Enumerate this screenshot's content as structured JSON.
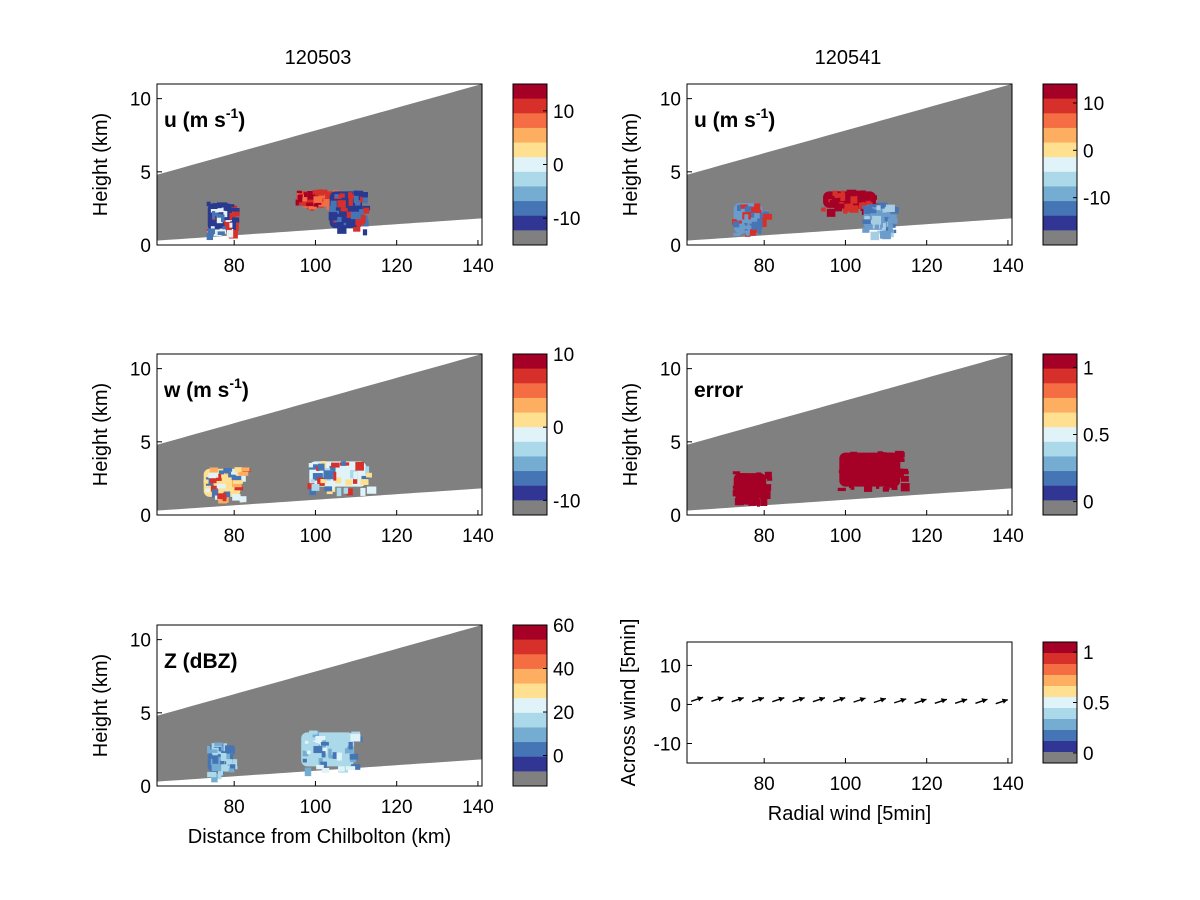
{
  "titles": {
    "left": "120503",
    "right": "120541"
  },
  "chart_data": [
    {
      "type": "heatmap",
      "id": "u_left",
      "column": "120503",
      "annotation": "u (m s",
      "annotation_sup": "-1",
      "annotation_suffix": ")",
      "xlabel": "",
      "ylabel": "Height (km)",
      "xlim": [
        61,
        141
      ],
      "ylim": [
        0,
        11
      ],
      "xticks": [
        80,
        100,
        120,
        140
      ],
      "yticks": [
        0,
        5,
        10
      ],
      "colorbar": {
        "ticks": [
          10,
          0,
          -10
        ],
        "range": [
          -15,
          15
        ]
      },
      "features": [
        {
          "x": [
            73,
            80
          ],
          "y": [
            0.8,
            3.0
          ],
          "colors": [
            "#2a3990",
            "#d7302a",
            "#e6f2f6",
            "#4575b4"
          ]
        },
        {
          "x": [
            95,
            106
          ],
          "y": [
            2.8,
            3.8
          ],
          "colors": [
            "#d7302a",
            "#a50026",
            "#f46d43"
          ]
        },
        {
          "x": [
            103,
            112
          ],
          "y": [
            1.0,
            3.8
          ],
          "colors": [
            "#2a3990",
            "#d7302a",
            "#4575b4"
          ]
        }
      ]
    },
    {
      "type": "heatmap",
      "id": "u_right",
      "column": "120541",
      "annotation": "u (m s",
      "annotation_sup": "-1",
      "annotation_suffix": ")",
      "xlabel": "",
      "ylabel": "Height (km)",
      "xlim": [
        61,
        141
      ],
      "ylim": [
        0,
        11
      ],
      "xticks": [
        80,
        100,
        120,
        140
      ],
      "yticks": [
        0,
        5,
        10
      ],
      "colorbar": {
        "ticks": [
          10,
          0,
          -10
        ],
        "range": [
          -20,
          14
        ]
      },
      "features": [
        {
          "x": [
            72,
            80
          ],
          "y": [
            0.7,
            3.0
          ],
          "colors": [
            "#6c9ccb",
            "#d7302a",
            "#4575b4"
          ]
        },
        {
          "x": [
            94,
            108
          ],
          "y": [
            2.4,
            3.8
          ],
          "colors": [
            "#a50026",
            "#d7302a"
          ]
        },
        {
          "x": [
            104,
            111
          ],
          "y": [
            0.9,
            2.9
          ],
          "colors": [
            "#6c9ccb",
            "#4575b4",
            "#a6cde2"
          ]
        }
      ]
    },
    {
      "type": "heatmap",
      "id": "w_left",
      "column": "120503",
      "annotation": "w (m s",
      "annotation_sup": "-1",
      "annotation_suffix": ")",
      "xlabel": "",
      "ylabel": "Height (km)",
      "xlim": [
        61,
        141
      ],
      "ylim": [
        0,
        11
      ],
      "xticks": [
        80,
        100,
        120,
        140
      ],
      "yticks": [
        0,
        5,
        10
      ],
      "colorbar": {
        "ticks": [
          10,
          0,
          -10
        ],
        "range": [
          -12,
          10
        ]
      },
      "features": [
        {
          "x": [
            72,
            82
          ],
          "y": [
            1.1,
            3.3
          ],
          "colors": [
            "#fee090",
            "#fdae61",
            "#4575b4",
            "#d7302a",
            "#e0f3f8"
          ]
        },
        {
          "x": [
            98,
            113
          ],
          "y": [
            1.8,
            3.8
          ],
          "colors": [
            "#e0f3f8",
            "#fee090",
            "#d7302a",
            "#4575b4",
            "#abd9e9"
          ]
        }
      ]
    },
    {
      "type": "heatmap",
      "id": "error",
      "column": "120541",
      "annotation": "error",
      "annotation_sup": "",
      "annotation_suffix": "",
      "xlabel": "",
      "ylabel": "Height (km)",
      "xlim": [
        61,
        141
      ],
      "ylim": [
        0,
        11
      ],
      "xticks": [
        80,
        100,
        120,
        140
      ],
      "yticks": [
        0,
        5,
        10
      ],
      "colorbar": {
        "ticks": [
          1,
          0.5,
          0
        ],
        "range": [
          -0.1,
          1.1
        ]
      },
      "features": [
        {
          "x": [
            72,
            81
          ],
          "y": [
            1.0,
            3.0
          ],
          "colors": [
            "#a50026"
          ]
        },
        {
          "x": [
            98,
            114
          ],
          "y": [
            1.8,
            4.4
          ],
          "colors": [
            "#a50026"
          ]
        }
      ]
    },
    {
      "type": "heatmap",
      "id": "z_left",
      "column": "120503",
      "annotation": "Z (dBZ)",
      "annotation_sup": "",
      "annotation_suffix": "",
      "xlabel": "Distance from Chilbolton (km)",
      "ylabel": "Height (km)",
      "xlim": [
        61,
        141
      ],
      "ylim": [
        0,
        11
      ],
      "xticks": [
        80,
        100,
        120,
        140
      ],
      "yticks": [
        0,
        5,
        10
      ],
      "colorbar": {
        "ticks": [
          60,
          40,
          20,
          0
        ],
        "range": [
          -14,
          60
        ]
      },
      "features": [
        {
          "x": [
            73,
            79
          ],
          "y": [
            0.8,
            3.0
          ],
          "colors": [
            "#4575b4",
            "#abd9e9",
            "#74add1"
          ]
        },
        {
          "x": [
            96,
            110
          ],
          "y": [
            1.2,
            3.8
          ],
          "colors": [
            "#abd9e9",
            "#4575b4",
            "#e0f3f8",
            "#74add1"
          ]
        }
      ]
    },
    {
      "type": "scatter",
      "id": "wind",
      "column": "120541",
      "annotation": "",
      "annotation_sup": "",
      "annotation_suffix": "",
      "xlabel": "Radial wind [5min]",
      "ylabel": "Across wind [5min]",
      "xlim": [
        61,
        141
      ],
      "ylim": [
        -15,
        16
      ],
      "xticks": [
        80,
        100,
        120,
        140
      ],
      "yticks": [
        10,
        0,
        -10
      ],
      "colorbar": {
        "ticks": [
          1,
          0.5,
          0
        ],
        "range": [
          -0.1,
          1.1
        ]
      },
      "x": [
        62,
        67,
        72,
        77,
        82,
        87,
        92,
        97,
        102,
        107,
        112,
        117,
        122,
        127,
        132,
        137
      ],
      "y": [
        0.8,
        0.8,
        0.7,
        0.7,
        0.7,
        0.7,
        0.7,
        0.7,
        0.6,
        0.5,
        0.4,
        0.3,
        0.3,
        0.3,
        0.3,
        0.2
      ]
    }
  ]
}
